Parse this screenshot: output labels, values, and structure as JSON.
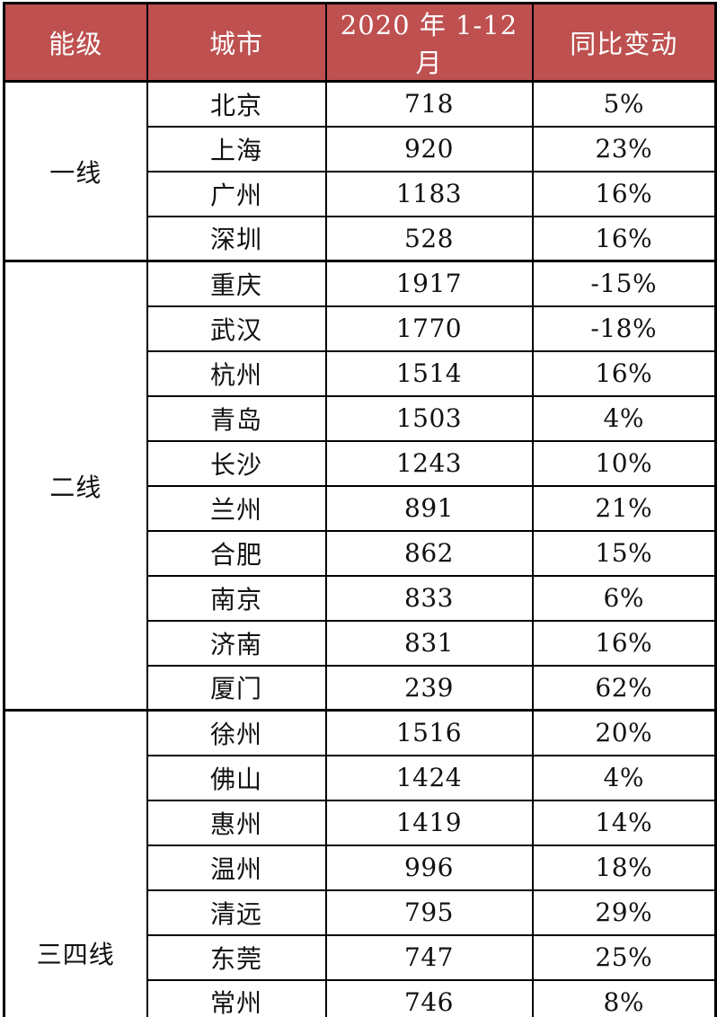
{
  "table": {
    "headers": [
      "能级",
      "城市",
      "2020 年 1-12 月",
      "同比变动"
    ],
    "groups": [
      {
        "tier": "一线",
        "rows": [
          {
            "city": "北京",
            "value": "718",
            "yoy": "5%"
          },
          {
            "city": "上海",
            "value": "920",
            "yoy": "23%"
          },
          {
            "city": "广州",
            "value": "1183",
            "yoy": "16%"
          },
          {
            "city": "深圳",
            "value": "528",
            "yoy": "16%"
          }
        ]
      },
      {
        "tier": "二线",
        "rows": [
          {
            "city": "重庆",
            "value": "1917",
            "yoy": "-15%"
          },
          {
            "city": "武汉",
            "value": "1770",
            "yoy": "-18%"
          },
          {
            "city": "杭州",
            "value": "1514",
            "yoy": "16%"
          },
          {
            "city": "青岛",
            "value": "1503",
            "yoy": "4%"
          },
          {
            "city": "长沙",
            "value": "1243",
            "yoy": "10%"
          },
          {
            "city": "兰州",
            "value": "891",
            "yoy": "21%"
          },
          {
            "city": "合肥",
            "value": "862",
            "yoy": "15%"
          },
          {
            "city": "南京",
            "value": "833",
            "yoy": "6%"
          },
          {
            "city": "济南",
            "value": "831",
            "yoy": "16%"
          },
          {
            "city": "厦门",
            "value": "239",
            "yoy": "62%"
          }
        ]
      },
      {
        "tier": "三四线",
        "rows": [
          {
            "city": "徐州",
            "value": "1516",
            "yoy": "20%"
          },
          {
            "city": "佛山",
            "value": "1424",
            "yoy": "4%"
          },
          {
            "city": "惠州",
            "value": "1419",
            "yoy": "14%"
          },
          {
            "city": "温州",
            "value": "996",
            "yoy": "18%"
          },
          {
            "city": "清远",
            "value": "795",
            "yoy": "29%"
          },
          {
            "city": "东莞",
            "value": "747",
            "yoy": "25%"
          },
          {
            "city": "常州",
            "value": "746",
            "yoy": "8%"
          }
        ]
      }
    ]
  },
  "colors": {
    "header_bg": "#be5050",
    "header_text": "#ffffff",
    "border": "#000000",
    "body_text": "#111111"
  }
}
